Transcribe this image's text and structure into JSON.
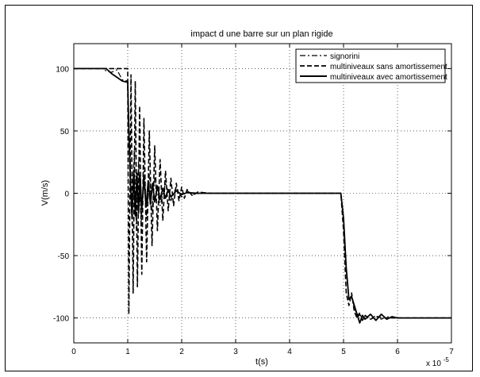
{
  "chart_data": {
    "type": "line",
    "title": "impact d une barre sur un plan rigide",
    "xlabel": "t(s)",
    "ylabel": "V(m/s)",
    "x_exponent_label": "x 10",
    "x_exponent": "-5",
    "xlim": [
      0,
      7
    ],
    "ylim": [
      -120,
      120
    ],
    "xticks": [
      0,
      1,
      2,
      3,
      4,
      5,
      6,
      7
    ],
    "yticks": [
      100,
      50,
      0,
      -50,
      -100
    ],
    "grid": true,
    "legend_position": "top-right",
    "x_unit_note": "x values in units of 1e-5 s",
    "series": [
      {
        "name": "signorini",
        "style": "dashdot",
        "points": [
          [
            0,
            100
          ],
          [
            0.55,
            100
          ],
          [
            0.6,
            98
          ],
          [
            0.7,
            97
          ],
          [
            0.8,
            99
          ],
          [
            0.9,
            91
          ],
          [
            1.0,
            90
          ],
          [
            1.01,
            60
          ],
          [
            1.05,
            20
          ],
          [
            1.08,
            -25
          ],
          [
            1.12,
            35
          ],
          [
            1.16,
            -30
          ],
          [
            1.2,
            25
          ],
          [
            1.25,
            -25
          ],
          [
            1.3,
            22
          ],
          [
            1.35,
            -20
          ],
          [
            1.4,
            15
          ],
          [
            1.45,
            -15
          ],
          [
            1.5,
            12
          ],
          [
            1.6,
            -10
          ],
          [
            1.7,
            8
          ],
          [
            1.8,
            -6
          ],
          [
            1.9,
            5
          ],
          [
            2.0,
            -3
          ],
          [
            2.1,
            2
          ],
          [
            2.2,
            -1
          ],
          [
            2.4,
            0.5
          ],
          [
            2.6,
            0
          ],
          [
            4.95,
            0
          ],
          [
            5.0,
            -20
          ],
          [
            5.05,
            -60
          ],
          [
            5.1,
            -85
          ],
          [
            5.15,
            -82
          ],
          [
            5.2,
            -92
          ],
          [
            5.25,
            -98
          ],
          [
            5.3,
            -96
          ],
          [
            5.35,
            -102
          ],
          [
            5.4,
            -99
          ],
          [
            5.5,
            -101
          ],
          [
            5.6,
            -98
          ],
          [
            5.7,
            -101
          ],
          [
            5.8,
            -99
          ],
          [
            6.0,
            -100
          ],
          [
            7.0,
            -100
          ]
        ]
      },
      {
        "name": "multiniveaux sans amortissement",
        "style": "dashed",
        "points": [
          [
            0,
            100
          ],
          [
            0.6,
            100
          ],
          [
            1.0,
            100
          ],
          [
            1.0,
            90
          ],
          [
            1.02,
            -97
          ],
          [
            1.06,
            95
          ],
          [
            1.1,
            -80
          ],
          [
            1.14,
            90
          ],
          [
            1.18,
            -75
          ],
          [
            1.22,
            70
          ],
          [
            1.26,
            -65
          ],
          [
            1.3,
            60
          ],
          [
            1.35,
            -55
          ],
          [
            1.4,
            50
          ],
          [
            1.45,
            -42
          ],
          [
            1.5,
            38
          ],
          [
            1.55,
            -30
          ],
          [
            1.6,
            27
          ],
          [
            1.65,
            -22
          ],
          [
            1.7,
            18
          ],
          [
            1.75,
            -14
          ],
          [
            1.8,
            12
          ],
          [
            1.85,
            -10
          ],
          [
            1.9,
            8
          ],
          [
            1.95,
            -6
          ],
          [
            2.0,
            5
          ],
          [
            2.05,
            -4
          ],
          [
            2.1,
            3
          ],
          [
            2.2,
            -2
          ],
          [
            2.3,
            1
          ],
          [
            2.5,
            0
          ],
          [
            4.95,
            0
          ],
          [
            5.0,
            -30
          ],
          [
            5.05,
            -80
          ],
          [
            5.1,
            -90
          ],
          [
            5.15,
            -80
          ],
          [
            5.2,
            -95
          ],
          [
            5.25,
            -100
          ],
          [
            5.3,
            -97
          ],
          [
            5.35,
            -102
          ],
          [
            5.4,
            -98
          ],
          [
            5.5,
            -101
          ],
          [
            5.6,
            -99
          ],
          [
            5.8,
            -100
          ],
          [
            6.0,
            -100
          ],
          [
            7.0,
            -100
          ]
        ]
      },
      {
        "name": "multiniveaux avec amortissement",
        "style": "solid",
        "points": [
          [
            0,
            100
          ],
          [
            0.6,
            100
          ],
          [
            0.7,
            96
          ],
          [
            0.8,
            93
          ],
          [
            0.9,
            90
          ],
          [
            1.0,
            89
          ],
          [
            1.02,
            50
          ],
          [
            1.05,
            10
          ],
          [
            1.08,
            -20
          ],
          [
            1.11,
            18
          ],
          [
            1.14,
            -18
          ],
          [
            1.17,
            16
          ],
          [
            1.2,
            -16
          ],
          [
            1.23,
            14
          ],
          [
            1.26,
            -13
          ],
          [
            1.3,
            12
          ],
          [
            1.34,
            -11
          ],
          [
            1.38,
            10
          ],
          [
            1.42,
            -9
          ],
          [
            1.46,
            8
          ],
          [
            1.5,
            -7
          ],
          [
            1.55,
            6
          ],
          [
            1.6,
            -5
          ],
          [
            1.65,
            4
          ],
          [
            1.7,
            -4
          ],
          [
            1.75,
            3
          ],
          [
            1.8,
            -3
          ],
          [
            1.9,
            2
          ],
          [
            2.0,
            -1
          ],
          [
            2.1,
            0.5
          ],
          [
            2.3,
            0
          ],
          [
            4.95,
            0
          ],
          [
            5.0,
            -20
          ],
          [
            5.05,
            -60
          ],
          [
            5.1,
            -85
          ],
          [
            5.15,
            -83
          ],
          [
            5.2,
            -90
          ],
          [
            5.25,
            -97
          ],
          [
            5.3,
            -104
          ],
          [
            5.35,
            -98
          ],
          [
            5.4,
            -101
          ],
          [
            5.5,
            -97
          ],
          [
            5.6,
            -102
          ],
          [
            5.7,
            -97
          ],
          [
            5.8,
            -101
          ],
          [
            5.9,
            -99
          ],
          [
            6.0,
            -100
          ],
          [
            6.2,
            -100
          ],
          [
            7.0,
            -100
          ]
        ]
      }
    ]
  }
}
